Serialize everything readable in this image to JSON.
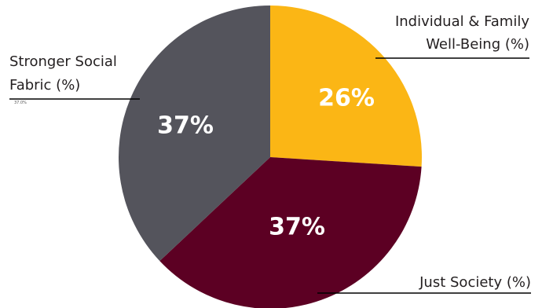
{
  "chart_data": {
    "type": "pie",
    "slices": [
      {
        "name": "Individual & Family Well-Being (%)",
        "label_lines": [
          "Individual & Family",
          "Well-Being (%)"
        ],
        "value": 26,
        "value_label": "26%",
        "color": "#fbb615"
      },
      {
        "name": "Just Society (%)",
        "label_lines": [
          "Just Society (%)"
        ],
        "value": 37,
        "value_label": "37%",
        "color": "#5c0023"
      },
      {
        "name": "Stronger Social Fabric (%)",
        "label_lines": [
          "Stronger Social",
          "Fabric (%)"
        ],
        "value": 37,
        "value_label": "37%",
        "small_label": "37.0%",
        "color": "#54545c"
      }
    ]
  }
}
